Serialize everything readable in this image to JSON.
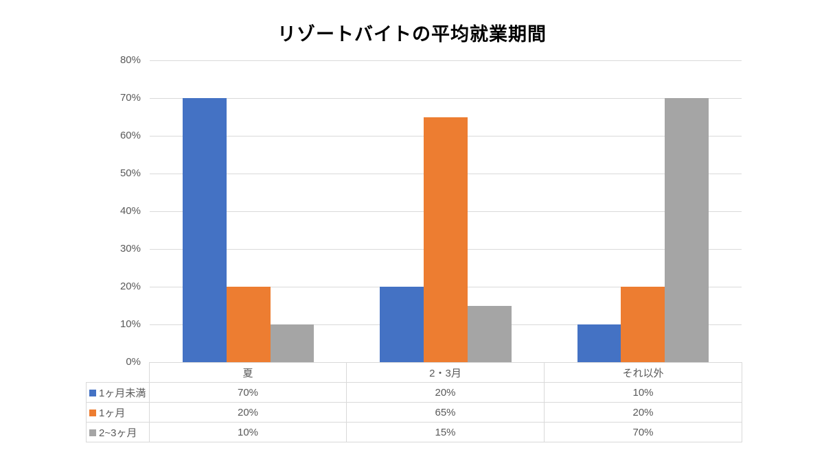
{
  "chart_data": {
    "type": "bar",
    "title": "リゾートバイトの平均就業期間",
    "categories": [
      "夏",
      "2・3月",
      "それ以外"
    ],
    "series": [
      {
        "name": "1ヶ月未満",
        "color": "#4472C4",
        "values": [
          70,
          20,
          10
        ]
      },
      {
        "name": "1ヶ月",
        "color": "#ED7D31",
        "values": [
          20,
          65,
          20
        ]
      },
      {
        "name": "2~3ヶ月",
        "color": "#A5A5A5",
        "values": [
          10,
          15,
          70
        ]
      }
    ],
    "y_axis": {
      "min": 0,
      "max": 80,
      "step": 10,
      "tick_labels": [
        "0%",
        "10%",
        "20%",
        "30%",
        "40%",
        "50%",
        "60%",
        "70%",
        "80%"
      ],
      "format": "percent"
    },
    "grid": true,
    "legend_position": "left-of-data-table",
    "value_suffix": "%"
  },
  "table": {
    "column_headers": [
      "夏",
      "2・3月",
      "それ以外"
    ],
    "rows": [
      {
        "label": "1ヶ月未満",
        "swatch_color": "#4472C4",
        "cells": [
          "70%",
          "20%",
          "10%"
        ]
      },
      {
        "label": "1ヶ月",
        "swatch_color": "#ED7D31",
        "cells": [
          "20%",
          "65%",
          "20%"
        ]
      },
      {
        "label": "2~3ヶ月",
        "swatch_color": "#A5A5A5",
        "cells": [
          "10%",
          "15%",
          "70%"
        ]
      }
    ]
  },
  "colors": {
    "grid": "#D9D9D9",
    "table_border": "#D9D9D9",
    "axis_text": "#595959",
    "title_text": "#000000",
    "background": "#FFFFFF"
  }
}
